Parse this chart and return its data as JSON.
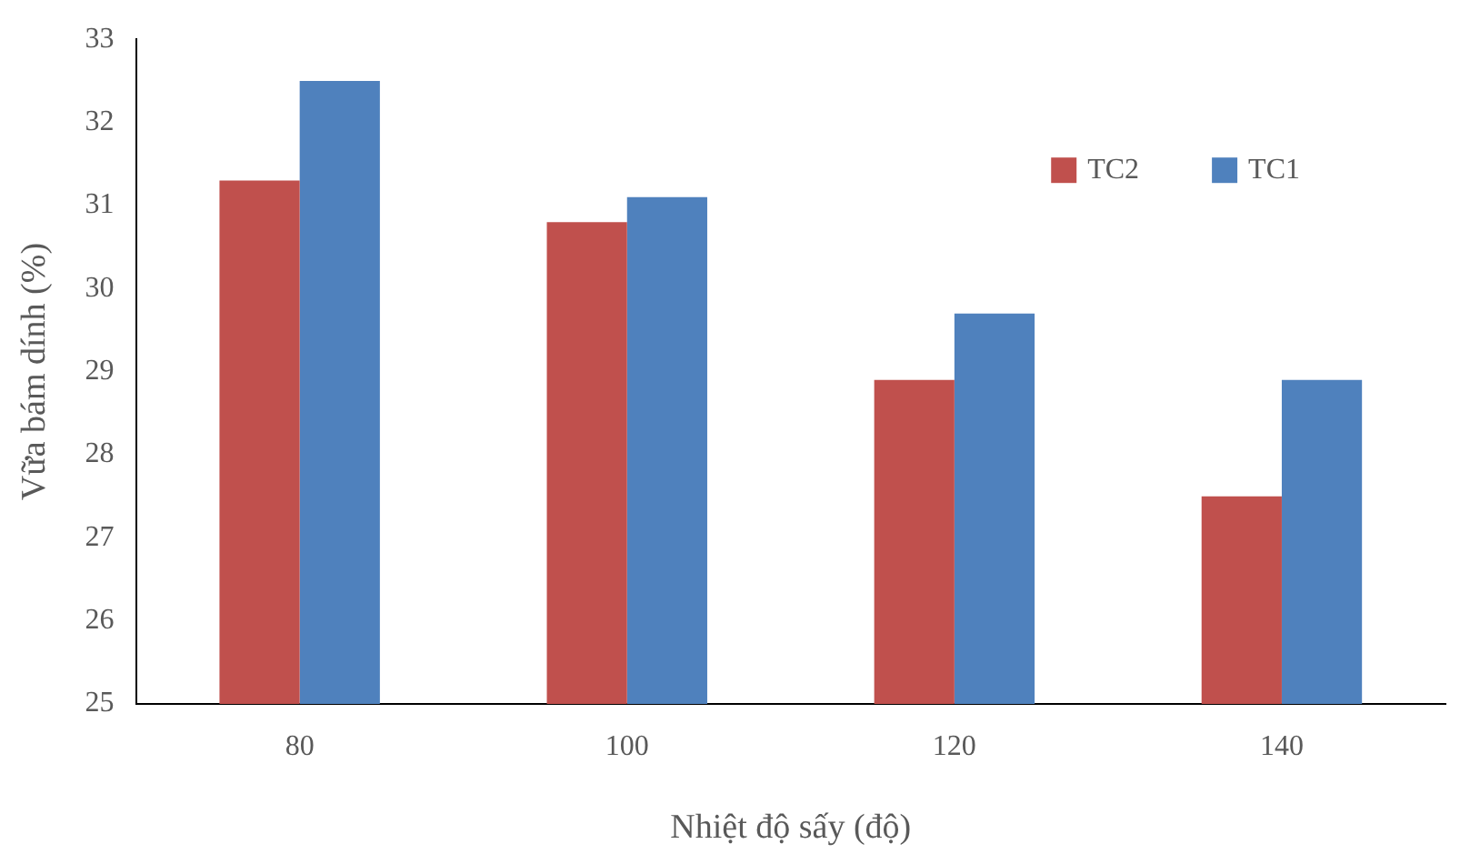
{
  "chart_data": {
    "type": "bar",
    "xlabel": "Nhiệt độ sấy (độ)",
    "ylabel": "Vữa bám dính (%)",
    "categories": [
      "80",
      "100",
      "120",
      "140"
    ],
    "series": [
      {
        "name": "TC2",
        "color": "#c0504d",
        "values": [
          31.3,
          30.8,
          28.9,
          27.5
        ]
      },
      {
        "name": "TC1",
        "color": "#4f81bd",
        "values": [
          32.5,
          31.1,
          29.7,
          28.9
        ]
      }
    ],
    "ylim": [
      25,
      33
    ],
    "yticks": [
      25,
      26,
      27,
      28,
      29,
      30,
      31,
      32,
      33
    ],
    "grid": false,
    "legend": "top right"
  }
}
